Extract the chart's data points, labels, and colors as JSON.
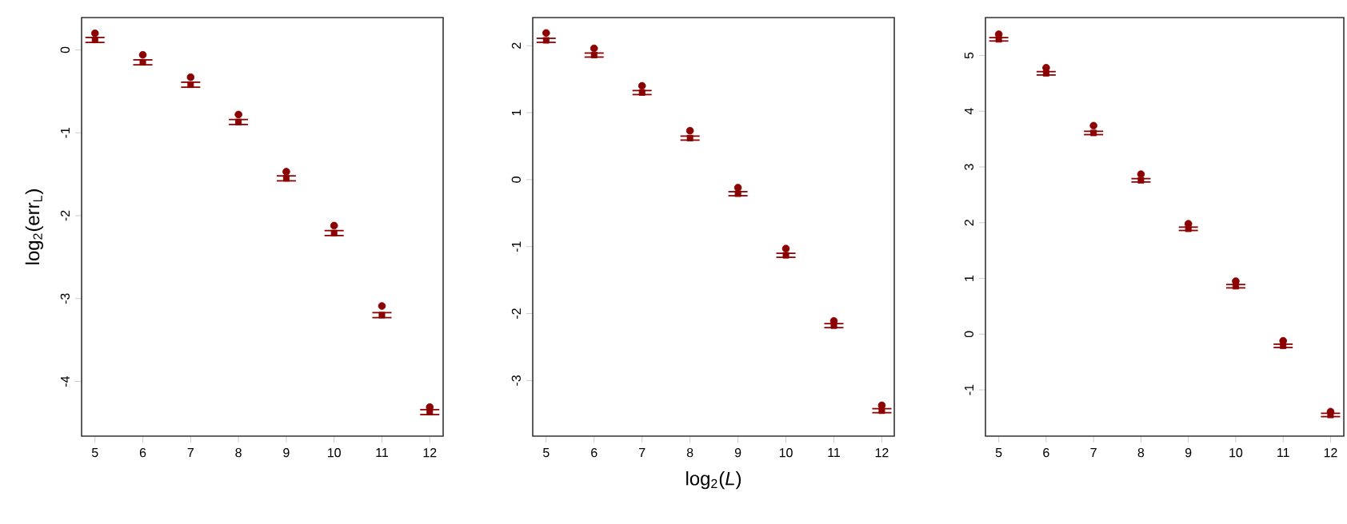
{
  "chart_data": [
    {
      "type": "scatter",
      "ylabel": "log$_{2}$(err$_{L}$)",
      "x": [
        5,
        6,
        7,
        8,
        9,
        10,
        11,
        12
      ],
      "xlim": [
        4.72,
        12.28
      ],
      "ylim": [
        -4.66,
        0.39
      ],
      "xticks": [
        5,
        6,
        7,
        8,
        9,
        10,
        11,
        12
      ],
      "yticks": [
        0,
        -1,
        -2,
        -3,
        -4
      ],
      "series": [
        {
          "color": "#8b0000",
          "marker": "circle",
          "values": [
            0.2,
            -0.06,
            -0.33,
            -0.78,
            -1.47,
            -2.12,
            -3.09,
            -4.31
          ]
        },
        {
          "color": "#8b0000",
          "marker": "square",
          "values": [
            0.12,
            -0.15,
            -0.42,
            -0.87,
            -1.55,
            -2.21,
            -3.2,
            -4.37
          ],
          "errors": [
            0.03,
            0.03,
            0.03,
            0.03,
            0.03,
            0.03,
            0.03,
            0.03
          ]
        }
      ]
    },
    {
      "type": "scatter",
      "xlabel": "log$_{2}$(*L*)",
      "x": [
        5,
        6,
        7,
        8,
        9,
        10,
        11,
        12
      ],
      "xlim": [
        4.72,
        12.26
      ],
      "ylim": [
        -3.83,
        2.42
      ],
      "xticks": [
        5,
        6,
        7,
        8,
        9,
        10,
        11,
        12
      ],
      "yticks": [
        2,
        1,
        0,
        -1,
        -2,
        -3
      ],
      "series": [
        {
          "color": "#8b0000",
          "marker": "circle",
          "values": [
            2.19,
            1.96,
            1.4,
            0.73,
            -0.12,
            -1.03,
            -2.11,
            -3.37
          ]
        },
        {
          "color": "#8b0000",
          "marker": "square",
          "values": [
            2.08,
            1.86,
            1.3,
            0.62,
            -0.21,
            -1.13,
            -2.18,
            -3.45
          ],
          "errors": [
            0.03,
            0.03,
            0.03,
            0.03,
            0.03,
            0.03,
            0.03,
            0.03
          ]
        }
      ]
    },
    {
      "type": "scatter",
      "x": [
        5,
        6,
        7,
        8,
        9,
        10,
        11,
        12
      ],
      "xlim": [
        4.72,
        12.28
      ],
      "ylim": [
        -1.83,
        5.68
      ],
      "xticks": [
        5,
        6,
        7,
        8,
        9,
        10,
        11,
        12
      ],
      "yticks": [
        5,
        4,
        3,
        2,
        1,
        0,
        -1
      ],
      "series": [
        {
          "color": "#8b0000",
          "marker": "circle",
          "values": [
            5.38,
            4.78,
            3.74,
            2.87,
            1.98,
            0.95,
            -0.12,
            -1.39
          ]
        },
        {
          "color": "#8b0000",
          "marker": "square",
          "values": [
            5.29,
            4.68,
            3.61,
            2.76,
            1.89,
            0.86,
            -0.21,
            -1.45
          ],
          "errors": [
            0.03,
            0.03,
            0.03,
            0.03,
            0.03,
            0.03,
            0.03,
            0.03
          ]
        }
      ]
    }
  ]
}
